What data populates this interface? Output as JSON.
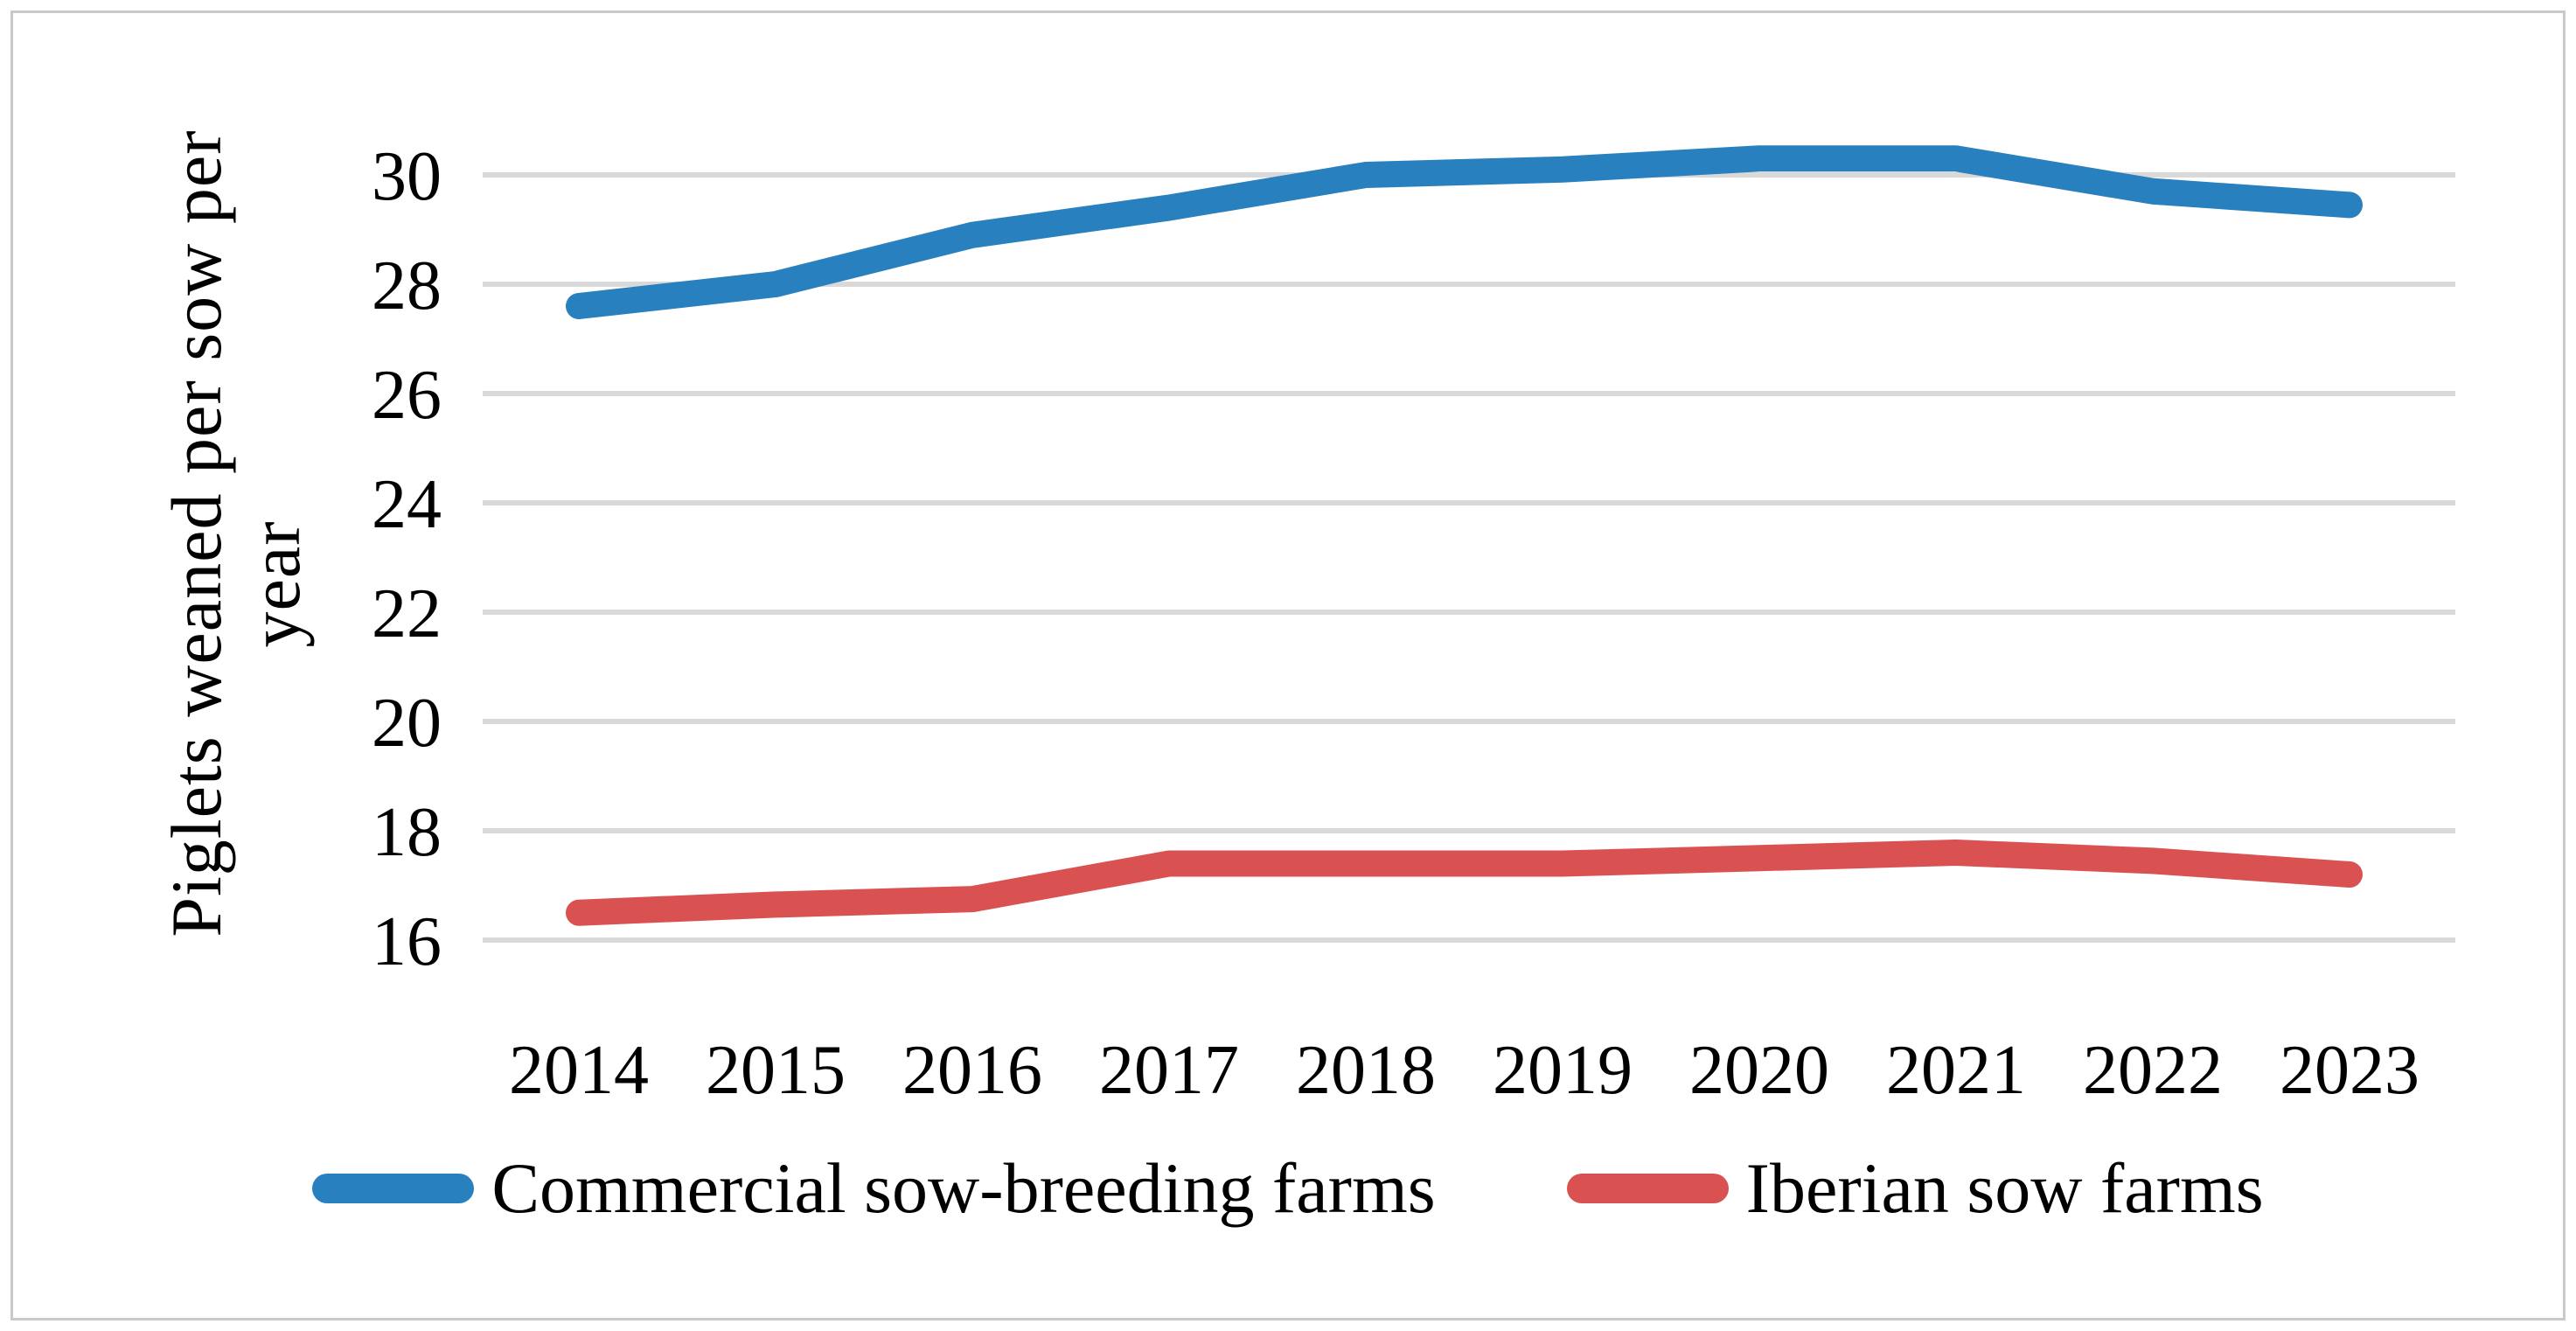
{
  "figure": {
    "y_axis_title": "Piglets weaned per sow per year",
    "y_axis_title_lines": [
      "Piglets weaned per sow per",
      "year"
    ],
    "legend_items": [
      {
        "label": "Commercial sow-breeding farms",
        "color": "#2980be"
      },
      {
        "label": "Iberian sow farms",
        "color": "#d95151"
      }
    ]
  },
  "chart_data": {
    "type": "line",
    "title": "",
    "xlabel": "",
    "ylabel": "Piglets weaned per sow per year",
    "categories": [
      "2014",
      "2015",
      "2016",
      "2017",
      "2018",
      "2019",
      "2020",
      "2021",
      "2022",
      "2023"
    ],
    "yticks": [
      16,
      18,
      20,
      22,
      24,
      26,
      28,
      30
    ],
    "ylim": [
      16,
      30
    ],
    "grid": true,
    "legend_position": "bottom",
    "gridline_color": "#d9d9d9",
    "series": [
      {
        "name": "Commercial sow-breeding farms",
        "color": "#2980be",
        "values": [
          27.6,
          28.0,
          28.9,
          29.4,
          30.0,
          30.1,
          30.3,
          30.3,
          29.7,
          29.45
        ]
      },
      {
        "name": "Iberian sow farms",
        "color": "#d95151",
        "values": [
          16.5,
          16.65,
          16.75,
          17.4,
          17.4,
          17.4,
          17.5,
          17.6,
          17.45,
          17.2
        ]
      }
    ]
  }
}
